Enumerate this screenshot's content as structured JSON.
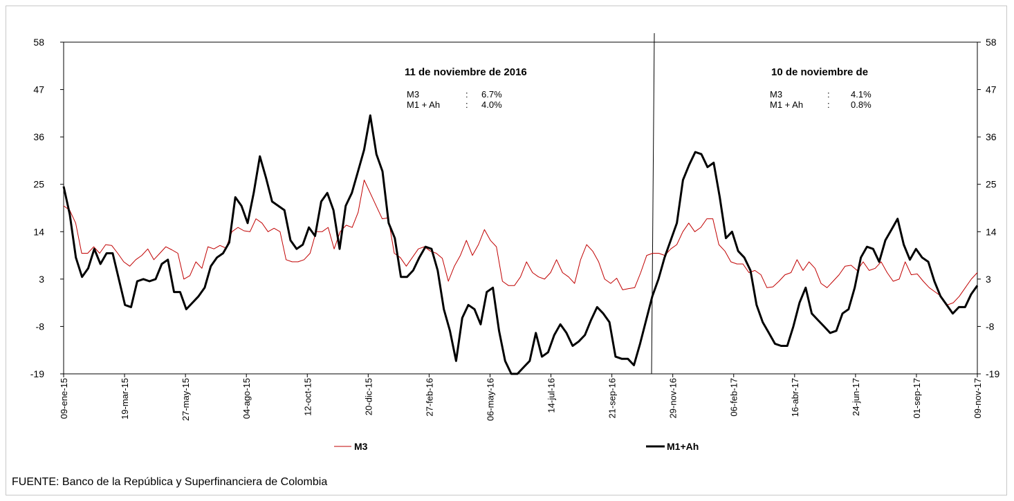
{
  "chart_data": {
    "type": "line",
    "y_ticks": [
      "58",
      "47",
      "36",
      "25",
      "14",
      "3",
      "-8",
      "-19"
    ],
    "ylim": [
      -19,
      58
    ],
    "x_tick_labels": [
      "09-ene-15",
      "19-mar-15",
      "27-may-15",
      "04-ago-15",
      "12-oct-15",
      "20-dic-15",
      "27-feb-16",
      "06-may-16",
      "14-jul-16",
      "21-sep-16",
      "29-nov-16",
      "06-feb-17",
      "16-abr-17",
      "24-jun-17",
      "01-sep-17",
      "09-nov-17"
    ],
    "annotations": [
      {
        "title": "11 de noviembre de 2016",
        "rows": [
          {
            "label": "M3",
            "sep": ":",
            "value": "6.7%"
          },
          {
            "label": "M1 + Ah",
            "sep": ":",
            "value": "4.0%"
          }
        ]
      },
      {
        "title": "10 de noviembre de",
        "rows": [
          {
            "label": "M3",
            "sep": ":",
            "value": "4.1%"
          },
          {
            "label": "M1 + Ah",
            "sep": ":",
            "value": "0.8%"
          }
        ]
      }
    ],
    "series": [
      {
        "name": "M3",
        "color": "#c00000",
        "values": [
          20,
          19,
          16,
          9,
          9,
          10.5,
          9,
          11,
          10.8,
          9,
          7,
          6,
          7.5,
          8.5,
          10,
          7.5,
          9,
          10.5,
          9.8,
          9,
          3,
          3.8,
          7,
          5.5,
          10.5,
          10,
          10.8,
          10.2,
          14,
          15,
          14.2,
          14,
          17,
          16,
          14,
          14.8,
          14,
          7.5,
          7,
          7,
          7.5,
          9,
          14,
          14,
          15,
          10,
          14,
          15.5,
          15,
          18.5,
          26,
          23,
          20,
          17,
          17.2,
          9,
          8,
          6,
          8,
          10,
          10.5,
          9.5,
          9,
          7.8,
          2.5,
          6,
          8.5,
          12,
          8.5,
          11,
          14.5,
          12,
          10.5,
          2.5,
          1.5,
          1.5,
          3.5,
          7,
          4.5,
          3.5,
          3,
          4.5,
          7.5,
          4.5,
          3.5,
          2,
          7.5,
          11,
          9.5,
          7,
          3,
          2,
          3.2,
          0.5,
          0.8,
          1,
          4.5,
          8.5,
          9,
          9,
          8.5,
          10,
          11,
          14,
          16,
          14,
          15,
          17,
          17,
          11,
          9.5,
          7,
          6.5,
          6.5,
          4.5,
          5,
          4,
          1,
          1.2,
          2.5,
          4,
          4.5,
          7.5,
          5,
          7,
          5.5,
          2,
          1,
          2.5,
          4,
          6,
          6.2,
          5,
          7,
          5,
          5.5,
          7,
          4.5,
          2.5,
          3,
          7,
          4,
          4.2,
          2.5,
          1,
          0,
          -1,
          -3,
          -2.5,
          -1,
          1,
          3,
          4.5
        ]
      },
      {
        "name": "M1+Ah",
        "color": "#000000",
        "values": [
          24.5,
          18,
          8,
          3.5,
          5.5,
          10,
          6.5,
          9,
          9,
          3,
          -3,
          -3.5,
          2.5,
          3,
          2.5,
          3,
          6.5,
          7.5,
          0,
          0,
          -4,
          -2.5,
          -1,
          1,
          6,
          8,
          9,
          11.5,
          22,
          20,
          16,
          23,
          31.5,
          26.5,
          21,
          20,
          19,
          12,
          10,
          11,
          15,
          13,
          21,
          23,
          19,
          10,
          20,
          23,
          28,
          33,
          41,
          32,
          28,
          16,
          12.5,
          3.5,
          3.5,
          5,
          8,
          10.5,
          10,
          5,
          -4,
          -9,
          -16,
          -6,
          -3,
          -4,
          -7.5,
          0,
          1,
          -9,
          -16,
          -19,
          -19,
          -17.5,
          -16,
          -9.5,
          -15,
          -14,
          -10,
          -7.5,
          -9.5,
          -12.5,
          -11.5,
          -10,
          -6.5,
          -3.5,
          -5,
          -7,
          -15,
          -15.5,
          -15.5,
          -17,
          -12,
          -6.5,
          -1,
          3,
          8,
          12,
          16,
          26,
          29.5,
          32.5,
          32,
          29,
          30,
          22,
          12.5,
          14,
          9.5,
          8,
          5,
          -3,
          -7,
          -9.5,
          -12,
          -12.5,
          -12.5,
          -8,
          -2.5,
          1,
          -5,
          -6.5,
          -8,
          -9.5,
          -9,
          -5,
          -4,
          1,
          8,
          10.5,
          10,
          7,
          12,
          14.5,
          17,
          11,
          7.5,
          10,
          8,
          7,
          2.5,
          -1,
          -3,
          -5,
          -3.5,
          -3.5,
          -0.5,
          1.5
        ]
      }
    ],
    "legend": {
      "position": "bottom",
      "items": [
        "M3",
        "M1+Ah"
      ]
    }
  },
  "source": "FUENTE: Banco de la República y Superfinanciera de Colombia"
}
